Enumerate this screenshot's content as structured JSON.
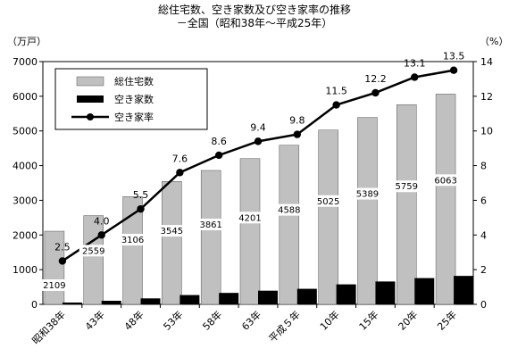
{
  "chart_data": {
    "type": "bar",
    "title": "総住宅数、空き家数及び空き家率の推移",
    "subtitle": "－全国（昭和38年～平成25年）",
    "y_left_label": "（万戸）",
    "y_right_label": "（%）",
    "categories": [
      "昭和38年",
      "43年",
      "48年",
      "53年",
      "58年",
      "63年",
      "平成５年",
      "10年",
      "15年",
      "20年",
      "25年"
    ],
    "series": [
      {
        "name": "総住宅数",
        "kind": "bar",
        "axis": "left",
        "color": "#c0c0c0",
        "values": [
          2109,
          2559,
          3106,
          3545,
          3861,
          4201,
          4588,
          5025,
          5389,
          5759,
          6063
        ]
      },
      {
        "name": "空き家数",
        "kind": "bar",
        "axis": "left",
        "color": "#000000",
        "values": [
          52,
          103,
          172,
          268,
          330,
          394,
          448,
          576,
          659,
          757,
          820
        ]
      },
      {
        "name": "空き家率",
        "kind": "line",
        "axis": "right",
        "color": "#000000",
        "values": [
          2.5,
          4.0,
          5.5,
          7.6,
          8.6,
          9.4,
          9.8,
          11.5,
          12.2,
          13.1,
          13.5
        ]
      }
    ],
    "bar_labels": [
      "2109",
      "2559",
      "3106",
      "3545",
      "3861",
      "4201",
      "4588",
      "5025",
      "5389",
      "5759",
      "6063"
    ],
    "line_labels": [
      "2.5",
      "4.0",
      "5.5",
      "7.6",
      "8.6",
      "9.4",
      "9.8",
      "11.5",
      "12.2",
      "13.1",
      "13.5"
    ],
    "ylim_left": [
      0,
      7000
    ],
    "yticks_left": [
      0,
      1000,
      2000,
      3000,
      4000,
      5000,
      6000,
      7000
    ],
    "ylim_right": [
      0,
      14
    ],
    "yticks_right": [
      0,
      2,
      4,
      6,
      8,
      10,
      12,
      14
    ],
    "grid": false,
    "legend_position": "top-left"
  }
}
